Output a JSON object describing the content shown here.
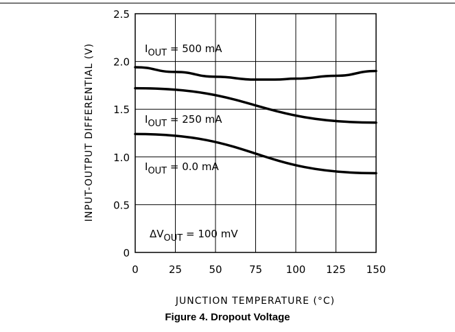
{
  "caption": "Figure 4. Dropout Voltage",
  "annotations": {
    "a500": {
      "pre": "I",
      "sub": "OUT",
      "post": " = 500 mA"
    },
    "a250": {
      "pre": "I",
      "sub": "OUT",
      "post": " = 250 mA"
    },
    "a0": {
      "pre": "I",
      "sub": "OUT",
      "post": " = 0.0 mA"
    },
    "dv": {
      "pre": "ΔV",
      "sub": "OUT",
      "post": " = 100 mV"
    }
  },
  "chart_data": {
    "type": "line",
    "title": "",
    "xlabel": "JUNCTION TEMPERATURE (°C)",
    "ylabel": "INPUT-OUTPUT DIFFERENTIAL (V)",
    "xlim": [
      0,
      150
    ],
    "ylim": [
      0,
      2.5
    ],
    "grid": true,
    "x_ticks": [
      "0",
      "25",
      "50",
      "75",
      "100",
      "125",
      "150"
    ],
    "y_ticks": [
      "0",
      "0.5",
      "1.0",
      "1.5",
      "2.0",
      "2.5"
    ],
    "series": [
      {
        "name": "I_OUT = 500 mA",
        "x": [
          0,
          25,
          50,
          75,
          87,
          100,
          125,
          150
        ],
        "y": [
          1.94,
          1.89,
          1.84,
          1.81,
          1.81,
          1.82,
          1.85,
          1.9
        ]
      },
      {
        "name": "I_OUT = 250 mA",
        "x": [
          0,
          150
        ],
        "y": [
          1.72,
          1.36
        ]
      },
      {
        "name": "I_OUT = 0.0 mA",
        "x": [
          0,
          150
        ],
        "y": [
          1.24,
          0.83
        ]
      }
    ]
  }
}
